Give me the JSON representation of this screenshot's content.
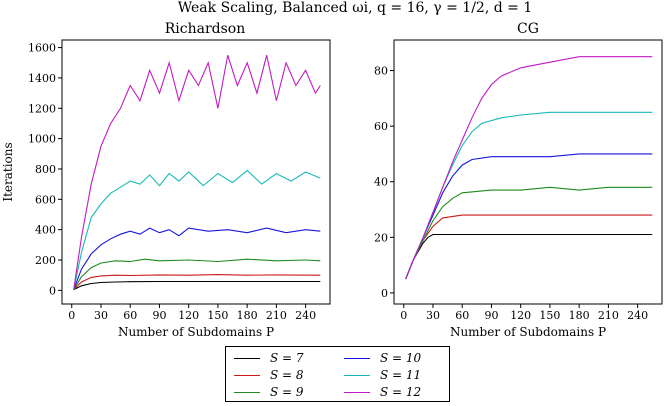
{
  "figure": {
    "suptitle": "Weak Scaling, Balanced ωi, q = 16, γ = 1/2, d = 1"
  },
  "legend": {
    "items": [
      {
        "label": "S = 7",
        "color": "#000000"
      },
      {
        "label": "S = 8",
        "color": "#cc1a1a"
      },
      {
        "label": "S = 9",
        "color": "#1f8a1f"
      },
      {
        "label": "S = 10",
        "color": "#1515dd"
      },
      {
        "label": "S = 11",
        "color": "#18b8b8"
      },
      {
        "label": "S = 12",
        "color": "#c21bc2"
      }
    ]
  },
  "chart_data": [
    {
      "type": "line",
      "title": "Richardson",
      "xlabel": "Number of Subdomains P",
      "ylabel": "Iterations",
      "xlim": [
        -10,
        265
      ],
      "ylim": [
        -90,
        1650
      ],
      "xticks": [
        0,
        30,
        60,
        90,
        120,
        150,
        180,
        210,
        240
      ],
      "yticks": [
        0,
        200,
        400,
        600,
        800,
        1000,
        1200,
        1400,
        1600
      ],
      "series": [
        {
          "name": "S = 7",
          "color": "#000000",
          "x": [
            2,
            10,
            20,
            30,
            45,
            60,
            90,
            120,
            180,
            255
          ],
          "y": [
            5,
            30,
            45,
            52,
            55,
            57,
            58,
            58,
            58,
            58
          ]
        },
        {
          "name": "S = 8",
          "color": "#cc1a1a",
          "x": [
            2,
            10,
            20,
            30,
            45,
            60,
            90,
            120,
            150,
            180,
            210,
            255
          ],
          "y": [
            5,
            55,
            85,
            95,
            100,
            98,
            102,
            100,
            104,
            100,
            102,
            100
          ]
        },
        {
          "name": "S = 9",
          "color": "#1f8a1f",
          "x": [
            2,
            10,
            20,
            30,
            45,
            60,
            75,
            90,
            120,
            150,
            180,
            210,
            240,
            255
          ],
          "y": [
            5,
            90,
            150,
            180,
            195,
            190,
            205,
            195,
            200,
            190,
            205,
            195,
            200,
            195
          ]
        },
        {
          "name": "S = 10",
          "color": "#1515dd",
          "x": [
            2,
            10,
            20,
            30,
            40,
            50,
            60,
            70,
            80,
            90,
            100,
            110,
            120,
            140,
            160,
            180,
            200,
            220,
            240,
            255
          ],
          "y": [
            5,
            140,
            240,
            300,
            340,
            370,
            390,
            370,
            410,
            380,
            400,
            360,
            410,
            390,
            400,
            380,
            410,
            380,
            400,
            390
          ]
        },
        {
          "name": "S = 11",
          "color": "#18b8b8",
          "x": [
            2,
            10,
            20,
            30,
            40,
            50,
            60,
            70,
            80,
            90,
            100,
            110,
            120,
            135,
            150,
            165,
            180,
            195,
            210,
            225,
            240,
            255
          ],
          "y": [
            5,
            250,
            480,
            570,
            640,
            680,
            720,
            700,
            760,
            690,
            770,
            720,
            780,
            690,
            770,
            710,
            790,
            700,
            770,
            720,
            780,
            740
          ]
        },
        {
          "name": "S = 12",
          "color": "#c21bc2",
          "x": [
            2,
            10,
            20,
            30,
            40,
            50,
            60,
            70,
            80,
            90,
            100,
            110,
            120,
            130,
            140,
            150,
            160,
            170,
            180,
            190,
            200,
            210,
            220,
            230,
            240,
            250,
            255
          ],
          "y": [
            5,
            350,
            700,
            950,
            1100,
            1200,
            1350,
            1250,
            1450,
            1300,
            1500,
            1250,
            1450,
            1350,
            1500,
            1200,
            1550,
            1350,
            1500,
            1300,
            1550,
            1250,
            1500,
            1350,
            1450,
            1300,
            1350
          ]
        }
      ]
    },
    {
      "type": "line",
      "title": "CG",
      "xlabel": "Number of Subdomains P",
      "ylabel": "",
      "xlim": [
        -10,
        265
      ],
      "ylim": [
        -4,
        91
      ],
      "xticks": [
        0,
        30,
        60,
        90,
        120,
        150,
        180,
        210,
        240
      ],
      "yticks": [
        0,
        20,
        40,
        60,
        80
      ],
      "series": [
        {
          "name": "S = 7",
          "color": "#000000",
          "x": [
            2,
            10,
            20,
            25,
            30,
            60,
            90,
            120,
            180,
            255
          ],
          "y": [
            5,
            12,
            18,
            20,
            21,
            21,
            21,
            21,
            21,
            21
          ]
        },
        {
          "name": "S = 8",
          "color": "#cc1a1a",
          "x": [
            2,
            10,
            20,
            30,
            40,
            60,
            90,
            120,
            180,
            255
          ],
          "y": [
            5,
            12,
            19,
            24,
            27,
            28,
            28,
            28,
            28,
            28
          ]
        },
        {
          "name": "S = 9",
          "color": "#1f8a1f",
          "x": [
            2,
            10,
            20,
            30,
            40,
            50,
            60,
            90,
            120,
            150,
            180,
            210,
            255
          ],
          "y": [
            5,
            12,
            19,
            26,
            31,
            34,
            36,
            37,
            37,
            38,
            37,
            38,
            38
          ]
        },
        {
          "name": "S = 10",
          "color": "#1515dd",
          "x": [
            2,
            10,
            20,
            30,
            40,
            50,
            60,
            70,
            90,
            120,
            150,
            180,
            210,
            255
          ],
          "y": [
            5,
            12,
            20,
            28,
            36,
            42,
            46,
            48,
            49,
            49,
            49,
            50,
            50,
            50
          ]
        },
        {
          "name": "S = 11",
          "color": "#18b8b8",
          "x": [
            2,
            10,
            20,
            30,
            40,
            50,
            60,
            70,
            80,
            100,
            120,
            150,
            180,
            210,
            255
          ],
          "y": [
            5,
            12,
            20,
            29,
            38,
            46,
            53,
            58,
            61,
            63,
            64,
            65,
            65,
            65,
            65
          ]
        },
        {
          "name": "S = 12",
          "color": "#c21bc2",
          "x": [
            2,
            10,
            20,
            30,
            40,
            50,
            60,
            70,
            80,
            90,
            100,
            120,
            150,
            180,
            210,
            255
          ],
          "y": [
            5,
            12,
            20,
            29,
            38,
            47,
            55,
            63,
            70,
            75,
            78,
            81,
            83,
            85,
            85,
            85
          ]
        }
      ]
    }
  ]
}
